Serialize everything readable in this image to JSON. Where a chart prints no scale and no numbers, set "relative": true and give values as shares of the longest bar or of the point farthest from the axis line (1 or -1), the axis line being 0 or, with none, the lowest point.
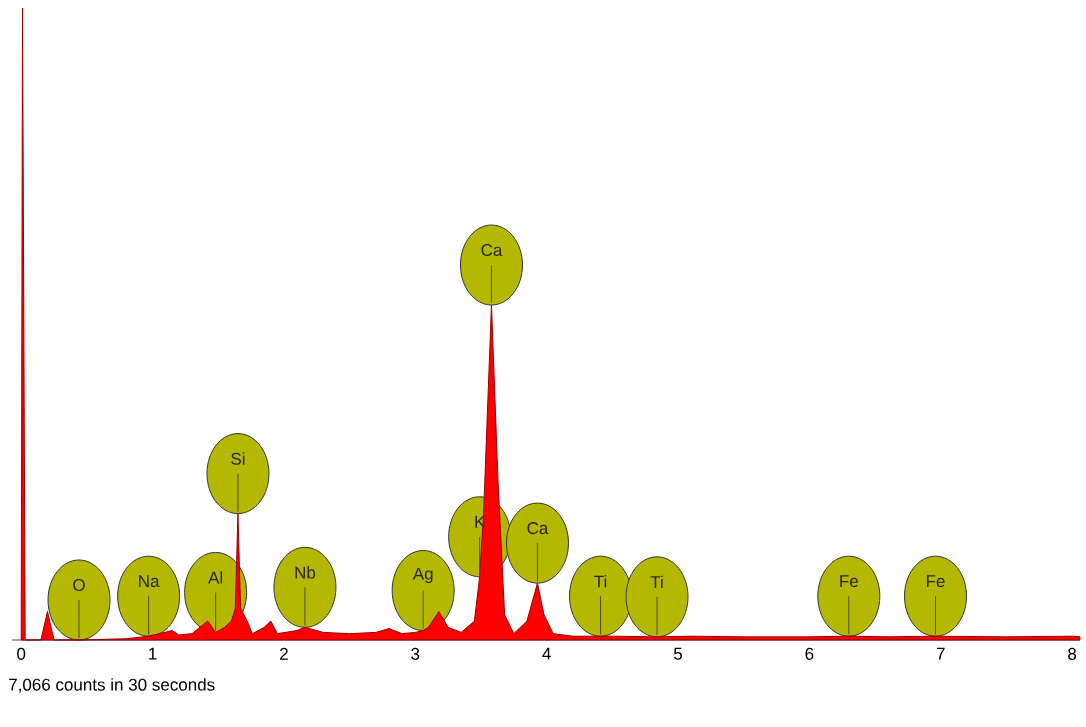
{
  "chart_data": {
    "type": "area",
    "relative": true,
    "xlim": [
      -0.07,
      8.06
    ],
    "xticks": [
      0,
      1,
      2,
      3,
      4,
      5,
      6,
      7,
      8
    ],
    "x": [
      0,
      0.01,
      0.03,
      0.15,
      0.2,
      0.25,
      0.44,
      0.8,
      0.97,
      1.05,
      1.15,
      1.2,
      1.3,
      1.42,
      1.48,
      1.55,
      1.6,
      1.63,
      1.65,
      1.67,
      1.72,
      1.76,
      1.85,
      1.9,
      1.95,
      2.1,
      2.16,
      2.3,
      2.5,
      2.7,
      2.8,
      2.9,
      3.0,
      3.06,
      3.1,
      3.18,
      3.25,
      3.35,
      3.45,
      3.49,
      3.52,
      3.58,
      3.63,
      3.68,
      3.75,
      3.85,
      3.93,
      3.98,
      4.05,
      4.2,
      4.41,
      4.5,
      4.84,
      5.1,
      5.5,
      6.0,
      6.3,
      6.6,
      6.96,
      7.5,
      8.0,
      8.06
    ],
    "series": [
      {
        "color": "#ff0000",
        "values": [
          0,
          1.0,
          0,
          0,
          0.045,
          0,
          0,
          0.002,
          0.006,
          0.01,
          0.015,
          0.008,
          0.01,
          0.03,
          0.012,
          0.02,
          0.03,
          0.05,
          0.2,
          0.05,
          0.03,
          0.01,
          0.02,
          0.03,
          0.01,
          0.015,
          0.02,
          0.012,
          0.01,
          0.012,
          0.018,
          0.01,
          0.012,
          0.015,
          0.02,
          0.045,
          0.02,
          0.012,
          0.03,
          0.1,
          0.2,
          0.53,
          0.25,
          0.04,
          0.01,
          0.03,
          0.09,
          0.04,
          0.01,
          0.006,
          0.006,
          0.006,
          0.005,
          0.006,
          0.005,
          0.005,
          0.006,
          0.005,
          0.006,
          0.005,
          0.006,
          0.005
        ]
      }
    ],
    "annotations": [
      {
        "text": "O",
        "x": 0.44,
        "y": 0
      },
      {
        "text": "Na",
        "x": 0.97,
        "y": 0.006
      },
      {
        "text": "Al",
        "x": 1.48,
        "y": 0.012
      },
      {
        "text": "Si",
        "x": 1.65,
        "y": 0.2
      },
      {
        "text": "Nb",
        "x": 2.16,
        "y": 0.02
      },
      {
        "text": "Ag",
        "x": 3.06,
        "y": 0.015
      },
      {
        "text": "K",
        "x": 3.49,
        "y": 0.1
      },
      {
        "text": "Ca",
        "x": 3.58,
        "y": 0.53
      },
      {
        "text": "Ca",
        "x": 3.93,
        "y": 0.09
      },
      {
        "text": "Ti",
        "x": 4.41,
        "y": 0.006
      },
      {
        "text": "Ti",
        "x": 4.84,
        "y": 0.005
      },
      {
        "text": "Fe",
        "x": 6.3,
        "y": 0.006
      },
      {
        "text": "Fe",
        "x": 6.96,
        "y": 0.006
      },
      "7,066 counts in 30 seconds"
    ]
  }
}
